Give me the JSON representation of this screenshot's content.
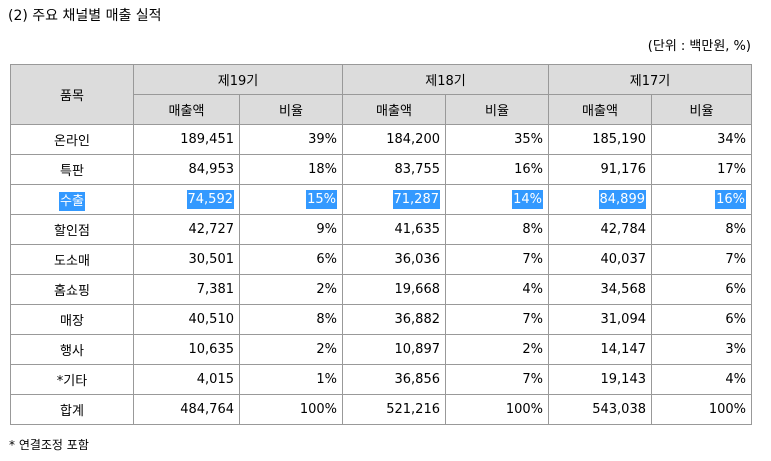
{
  "title": "(2) 주요 채널별 매출 실적",
  "unit_note": "(단위 : 백만원, %)",
  "table": {
    "item_header": "품목",
    "periods": [
      "제19기",
      "제18기",
      "제17기"
    ],
    "sub_headers": {
      "sales": "매출액",
      "ratio": "비율"
    },
    "rows": [
      {
        "item": "온라인",
        "p19_sales": "189,451",
        "p19_ratio": "39%",
        "p18_sales": "184,200",
        "p18_ratio": "35%",
        "p17_sales": "185,190",
        "p17_ratio": "34%"
      },
      {
        "item": "특판",
        "p19_sales": "84,953",
        "p19_ratio": "18%",
        "p18_sales": "83,755",
        "p18_ratio": "16%",
        "p17_sales": "91,176",
        "p17_ratio": "17%"
      },
      {
        "item": "수출",
        "p19_sales": "74,592",
        "p19_ratio": "15%",
        "p18_sales": "71,287",
        "p18_ratio": "14%",
        "p17_sales": "84,899",
        "p17_ratio": "16%",
        "selected": true
      },
      {
        "item": "할인점",
        "p19_sales": "42,727",
        "p19_ratio": "9%",
        "p18_sales": "41,635",
        "p18_ratio": "8%",
        "p17_sales": "42,784",
        "p17_ratio": "8%"
      },
      {
        "item": "도소매",
        "p19_sales": "30,501",
        "p19_ratio": "6%",
        "p18_sales": "36,036",
        "p18_ratio": "7%",
        "p17_sales": "40,037",
        "p17_ratio": "7%"
      },
      {
        "item": "홈쇼핑",
        "p19_sales": "7,381",
        "p19_ratio": "2%",
        "p18_sales": "19,668",
        "p18_ratio": "4%",
        "p17_sales": "34,568",
        "p17_ratio": "6%"
      },
      {
        "item": "매장",
        "p19_sales": "40,510",
        "p19_ratio": "8%",
        "p18_sales": "36,882",
        "p18_ratio": "7%",
        "p17_sales": "31,094",
        "p17_ratio": "6%"
      },
      {
        "item": "행사",
        "p19_sales": "10,635",
        "p19_ratio": "2%",
        "p18_sales": "10,897",
        "p18_ratio": "2%",
        "p17_sales": "14,147",
        "p17_ratio": "3%"
      },
      {
        "item": "*기타",
        "p19_sales": "4,015",
        "p19_ratio": "1%",
        "p18_sales": "36,856",
        "p18_ratio": "7%",
        "p17_sales": "19,143",
        "p17_ratio": "4%"
      },
      {
        "item": "합계",
        "p19_sales": "484,764",
        "p19_ratio": "100%",
        "p18_sales": "521,216",
        "p18_ratio": "100%",
        "p17_sales": "543,038",
        "p17_ratio": "100%"
      }
    ]
  },
  "footnote": "* 연결조정 포함",
  "colors": {
    "header_bg": "#dcdcdc",
    "selection_bg": "#3399ff",
    "selection_text": "#ffffff",
    "border": "#999999"
  }
}
